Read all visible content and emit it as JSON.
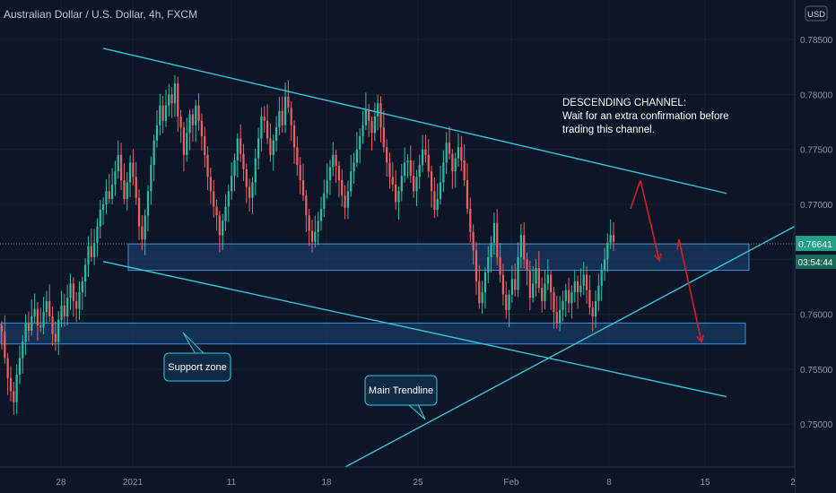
{
  "header": {
    "title": "Australian Dollar / U.S. Dollar, 4h, FXCM"
  },
  "currency_badge": "USD",
  "price_tag": {
    "price": "0.76641",
    "countdown": "03:54:44"
  },
  "annotations": {
    "channel_title": "DESCENDING CHANNEL:",
    "channel_line1": "Wait for an extra confirmation before",
    "channel_line2": "trading this channel.",
    "support_zone": "Support zone",
    "main_trendline": "Main Trendline"
  },
  "colors": {
    "background": "#0c1628",
    "bullish": "#2bbfa4",
    "bearish": "#ef6060",
    "trendline": "#35c6d8",
    "zone_border": "#3b8fe0",
    "arrow": "#d81f26",
    "axis_text": "#8a93a6",
    "price_tag": "#24a184",
    "countdown_tag": "#196b5c"
  },
  "chart_data": {
    "type": "candlestick",
    "timeframe": "4h",
    "symbol": "AUDUSD",
    "y_axis": {
      "ticks": [
        "0.78500",
        "0.78000",
        "0.77500",
        "0.77000",
        "0.76500",
        "0.76000",
        "0.75500",
        "0.75000"
      ],
      "range": [
        0.7461,
        0.7886
      ]
    },
    "x_axis": {
      "ticks": [
        "28",
        "2021",
        "11",
        "18",
        "25",
        "Feb",
        "8",
        "15",
        "2"
      ]
    },
    "current_price": 0.76641,
    "zones": [
      {
        "name": "resistance-zone",
        "top": 0.7664,
        "bottom": 0.764
      },
      {
        "name": "support-zone",
        "top": 0.7592,
        "bottom": 0.7573
      }
    ],
    "trendlines": [
      {
        "name": "channel-upper",
        "from": [
          0.7842,
          0.7843
        ],
        "to": [
          0.771,
          0.771
        ]
      },
      {
        "name": "channel-lower",
        "from": [
          0.7648,
          0.7648
        ],
        "to": [
          0.7525,
          0.7525
        ]
      },
      {
        "name": "main-trendline",
        "from": [
          0.7458,
          0.7458
        ],
        "to": [
          0.768,
          0.768
        ]
      }
    ],
    "projection_path": [
      0.7722,
      0.7649,
      0.7668,
      0.7575
    ],
    "candle_closes": [
      0.7584,
      0.756,
      0.7542,
      0.753,
      0.752,
      0.7545,
      0.756,
      0.7575,
      0.7592,
      0.7585,
      0.7598,
      0.7605,
      0.759,
      0.7588,
      0.7602,
      0.7612,
      0.7598,
      0.7582,
      0.7575,
      0.7595,
      0.7608,
      0.7598,
      0.7615,
      0.7628,
      0.7612,
      0.7605,
      0.762,
      0.763,
      0.7645,
      0.7662,
      0.7652,
      0.7665,
      0.768,
      0.7695,
      0.77,
      0.7712,
      0.7705,
      0.7718,
      0.773,
      0.7745,
      0.7722,
      0.7705,
      0.772,
      0.7738,
      0.7725,
      0.7706,
      0.768,
      0.7668,
      0.769,
      0.7712,
      0.7736,
      0.7758,
      0.7772,
      0.779,
      0.7776,
      0.779,
      0.78,
      0.7792,
      0.781,
      0.778,
      0.777,
      0.7745,
      0.7765,
      0.7782,
      0.7772,
      0.779,
      0.7776,
      0.7762,
      0.7745,
      0.7725,
      0.7712,
      0.7698,
      0.769,
      0.7672,
      0.7685,
      0.7698,
      0.7712,
      0.7726,
      0.774,
      0.776,
      0.7746,
      0.7732,
      0.7716,
      0.7706,
      0.772,
      0.7742,
      0.776,
      0.778,
      0.7776,
      0.776,
      0.7745,
      0.7758,
      0.777,
      0.7785,
      0.7772,
      0.7798,
      0.7788,
      0.7772,
      0.7752,
      0.7736,
      0.7722,
      0.7708,
      0.769,
      0.7676,
      0.7666,
      0.7675,
      0.7685,
      0.7696,
      0.771,
      0.7722,
      0.7734,
      0.7745,
      0.7735,
      0.7722,
      0.7708,
      0.7697,
      0.7712,
      0.773,
      0.7738,
      0.775,
      0.7762,
      0.7772,
      0.7786,
      0.7776,
      0.7765,
      0.778,
      0.7792,
      0.777,
      0.7752,
      0.7738,
      0.7725,
      0.7718,
      0.7702,
      0.7712,
      0.7726,
      0.7738,
      0.774,
      0.7726,
      0.7712,
      0.7725,
      0.7736,
      0.775,
      0.7745,
      0.773,
      0.7712,
      0.7695,
      0.7705,
      0.772,
      0.7738,
      0.7756,
      0.7746,
      0.773,
      0.7742,
      0.7752,
      0.774,
      0.7722,
      0.7696,
      0.7675,
      0.7658,
      0.763,
      0.761,
      0.762,
      0.7638,
      0.7652,
      0.7665,
      0.7683,
      0.7652,
      0.7636,
      0.7618,
      0.7604,
      0.7618,
      0.7632,
      0.7622,
      0.7652,
      0.7672,
      0.765,
      0.764,
      0.7615,
      0.7628,
      0.7642,
      0.7624,
      0.7612,
      0.7628,
      0.7636,
      0.762,
      0.7602,
      0.7592,
      0.7604,
      0.7612,
      0.7622,
      0.761,
      0.762,
      0.763,
      0.762,
      0.7626,
      0.7636,
      0.7622,
      0.7606,
      0.7598,
      0.7612,
      0.7626,
      0.764,
      0.765,
      0.7665,
      0.7672,
      0.7666
    ]
  }
}
